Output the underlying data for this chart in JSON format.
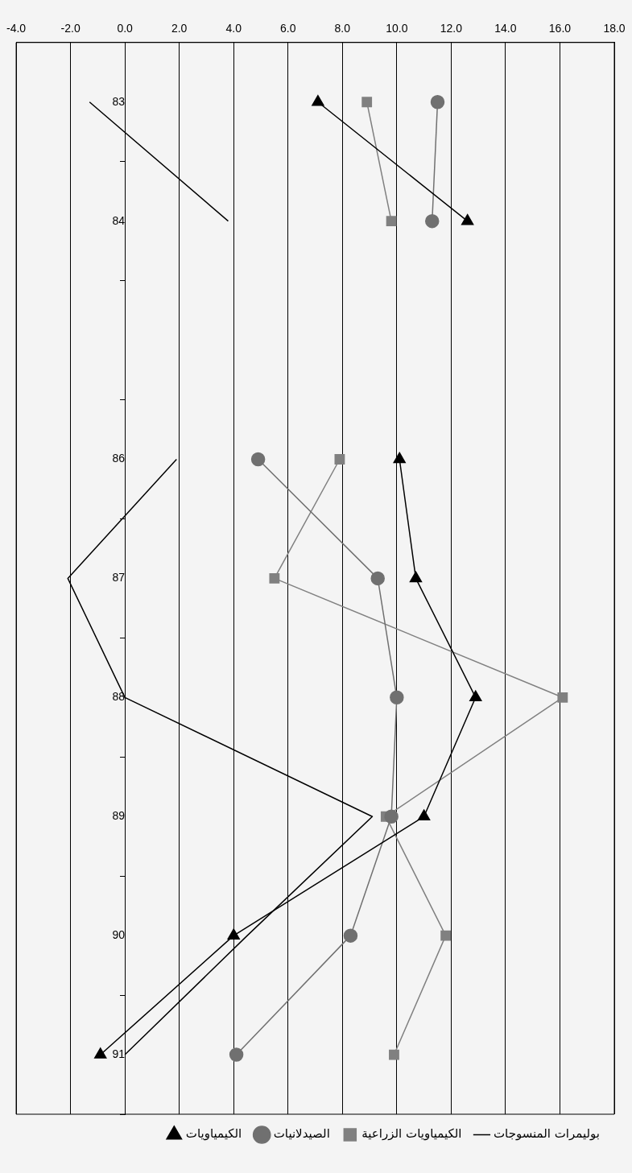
{
  "chart_data": {
    "type": "line",
    "orientation": "horizontal",
    "categories": [
      "83",
      "84",
      null,
      "86",
      "87",
      "88",
      "89",
      "90",
      "91"
    ],
    "series": [
      {
        "name": "الكيمياويات",
        "color": "#000000",
        "marker": "triangle",
        "values": [
          7.1,
          12.6,
          null,
          10.1,
          10.7,
          12.9,
          11.0,
          4.0,
          -0.9
        ]
      },
      {
        "name": "الصيدلانيات",
        "color": "#707070",
        "marker": "circle",
        "values": [
          11.5,
          11.3,
          null,
          4.9,
          9.3,
          10.0,
          9.8,
          8.3,
          4.1
        ]
      },
      {
        "name": "الكيمياويات الزراعية",
        "color": "#808080",
        "marker": "square",
        "values": [
          8.9,
          9.8,
          null,
          7.9,
          5.5,
          16.1,
          9.6,
          11.8,
          9.9
        ]
      },
      {
        "name": "بوليمرات المنسوجات",
        "color": "#000000",
        "marker": "none",
        "values": [
          -1.3,
          3.8,
          null,
          1.9,
          -2.1,
          0.0,
          9.1,
          4.5,
          0.0
        ]
      }
    ],
    "xlim": [
      -4,
      18
    ],
    "xticks": [
      {
        "value": -4,
        "label": "-4.0"
      },
      {
        "value": -2,
        "label": "-2.0"
      },
      {
        "value": 0,
        "label": "0.0"
      },
      {
        "value": 2,
        "label": "2.0"
      },
      {
        "value": 4,
        "label": "4.0"
      },
      {
        "value": 6,
        "label": "6.0"
      },
      {
        "value": 8,
        "label": "8.0"
      },
      {
        "value": 10,
        "label": "10.0"
      },
      {
        "value": 12,
        "label": "12.0"
      },
      {
        "value": 14,
        "label": "14.0"
      },
      {
        "value": 16,
        "label": "16.0"
      },
      {
        "value": 18,
        "label": "18.0"
      }
    ],
    "grid": "x",
    "legend": "bottom right"
  }
}
